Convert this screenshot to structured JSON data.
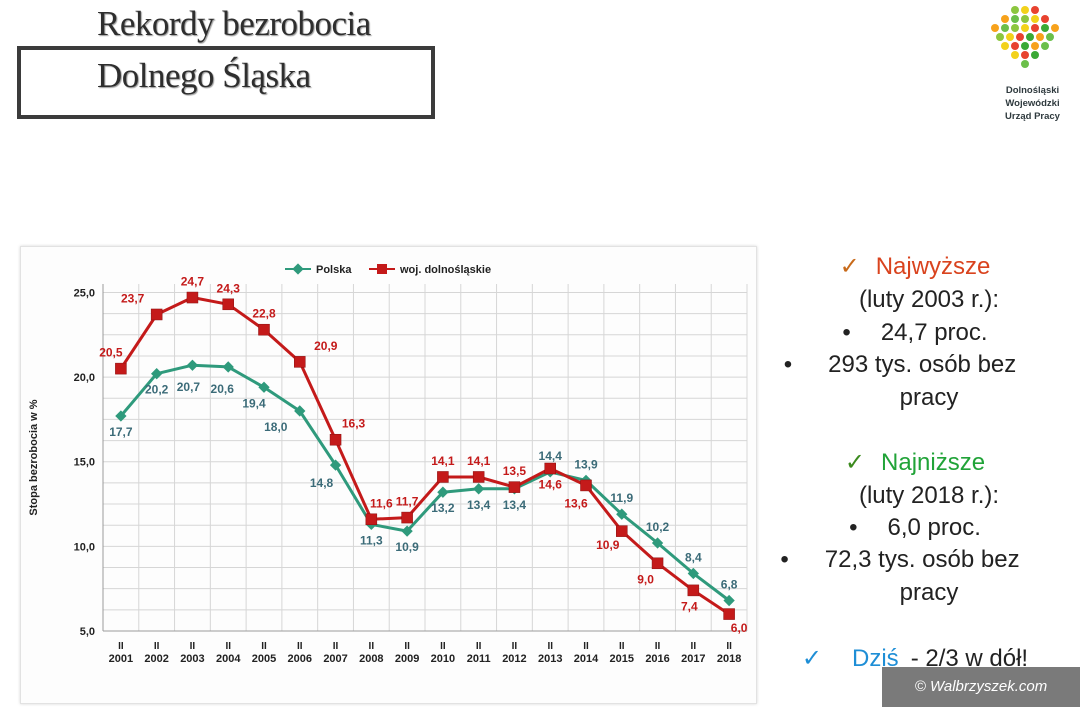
{
  "title": {
    "line1": "Rekordy bezrobocia",
    "line2": "Dolnego Śląska"
  },
  "logo": {
    "line1": "Dolnośląski",
    "line2": "Wojewódzki",
    "line3": "Urząd Pracy",
    "icon": "hexagon-cluster-icon"
  },
  "chart_data": {
    "type": "line",
    "title": "",
    "xlabel": "",
    "ylabel": "Stopa bezrobocia w %",
    "x_month_label": "II",
    "categories": [
      "2001",
      "2002",
      "2003",
      "2004",
      "2005",
      "2006",
      "2007",
      "2008",
      "2009",
      "2010",
      "2011",
      "2012",
      "2013",
      "2014",
      "2015",
      "2016",
      "2017",
      "2018"
    ],
    "ylim": [
      5,
      25.5
    ],
    "yticks": [
      "5,0",
      "10,0",
      "15,0",
      "20,0",
      "25,0"
    ],
    "ytick_values": [
      5,
      10,
      15,
      20,
      25
    ],
    "grid": true,
    "legend_position": "top",
    "series": [
      {
        "name": "Polska",
        "color": "#2f9a7c",
        "label_color": "#3b6b78",
        "values": [
          17.7,
          20.2,
          20.7,
          20.6,
          19.4,
          18.0,
          14.8,
          11.3,
          10.9,
          13.2,
          13.4,
          13.4,
          14.4,
          13.9,
          11.9,
          10.2,
          8.4,
          6.8
        ],
        "labels": [
          "17,7",
          "20,2",
          "20,7",
          "20,6",
          "19,4",
          "18,0",
          "14,8",
          "11,3",
          "10,9",
          "13,2",
          "13,4",
          "13,4",
          "14,4",
          "13,9",
          "11,9",
          "10,2",
          "8,4",
          "6,8"
        ]
      },
      {
        "name": "woj. dolnośląskie",
        "color": "#c41a1a",
        "label_color": "#c41a1a",
        "values": [
          20.5,
          23.7,
          24.7,
          24.3,
          22.8,
          20.9,
          16.3,
          11.6,
          11.7,
          14.1,
          14.1,
          13.5,
          14.6,
          13.6,
          10.9,
          9.0,
          7.4,
          6.0
        ],
        "labels": [
          "20,5",
          "23,7",
          "24,7",
          "24,3",
          "22,8",
          "20,9",
          "16,3",
          "11,6",
          "11,7",
          "14,1",
          "14,1",
          "13,5",
          "14,6",
          "13,6",
          "10,9",
          "9,0",
          "7,4",
          "6,0"
        ]
      }
    ]
  },
  "side": {
    "highest_label": "Najwyższe",
    "highest_date": "(luty 2003 r.):",
    "highest_rate": "24,7 proc.",
    "highest_people_1": "293 tys. osób bez",
    "highest_people_2": "pracy",
    "lowest_label": "Najniższe",
    "lowest_date": "(luty 2018 r.):",
    "lowest_rate": "6,0 proc.",
    "lowest_people_1": "72,3 tys. osób bez",
    "lowest_people_2": "pracy",
    "today_label": "Dziś",
    "today_text": "- 2/3 w dół!",
    "bullet": "•",
    "check": "✓",
    "colors": {
      "highest": "#d9431e",
      "lowest": "#21a338",
      "today": "#1e8ed6",
      "check": "#3b8a1e"
    }
  },
  "watermark": "© Walbrzyszek.com"
}
